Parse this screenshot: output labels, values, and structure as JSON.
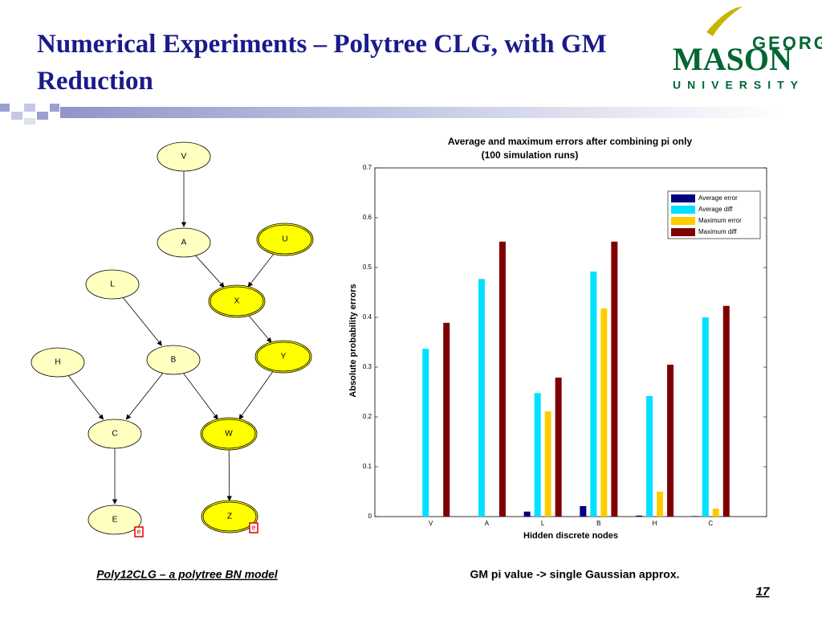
{
  "header": {
    "title": "Numerical Experiments – Polytree CLG, with GM Reduction",
    "logo": {
      "top": "GEORGE",
      "middle": "MASON",
      "bottom": "UNIVERSITY"
    }
  },
  "diagram": {
    "caption": "Poly12CLG – a polytree BN model",
    "nodes": [
      {
        "label": "V"
      },
      {
        "label": "A"
      },
      {
        "label": "U"
      },
      {
        "label": "L"
      },
      {
        "label": "X"
      },
      {
        "label": "H"
      },
      {
        "label": "B"
      },
      {
        "label": "Y"
      },
      {
        "label": "C"
      },
      {
        "label": "W"
      },
      {
        "label": "E"
      },
      {
        "label": "Z"
      }
    ],
    "evidence": [
      {
        "label": "e"
      },
      {
        "label": "e"
      }
    ]
  },
  "chart_data": {
    "type": "bar",
    "title": "Average and maximum errors after combining pi only",
    "subtitle": "(100 simulation runs)",
    "x_label": "Hidden discrete nodes",
    "y_label": "Absolute probability errors",
    "categories": [
      "V",
      "A",
      "L",
      "B",
      "H",
      "C"
    ],
    "series": [
      {
        "name": "Average error",
        "color": "#00007f",
        "values": [
          0,
          0,
          0.01,
          0.021,
          0.002,
          0.001
        ]
      },
      {
        "name": "Average diff",
        "color": "#00e0ff",
        "values": [
          0.337,
          0.477,
          0.248,
          0.492,
          0.242,
          0.4
        ]
      },
      {
        "name": "Maximum error",
        "color": "#ffcc00",
        "values": [
          0,
          0,
          0.211,
          0.418,
          0.05,
          0.016
        ]
      },
      {
        "name": "Maximum diff",
        "color": "#7f0000",
        "values": [
          0.389,
          0.552,
          0.279,
          0.552,
          0.305,
          0.423
        ]
      }
    ],
    "ylim": [
      0,
      0.7
    ],
    "yticks": [
      0,
      0.1,
      0.2,
      0.3,
      0.4,
      0.5,
      0.6,
      0.7
    ],
    "grid": false,
    "legend": "upper right",
    "caption": "GM pi value -> single Gaussian approx."
  },
  "footer": {
    "page": "17"
  }
}
